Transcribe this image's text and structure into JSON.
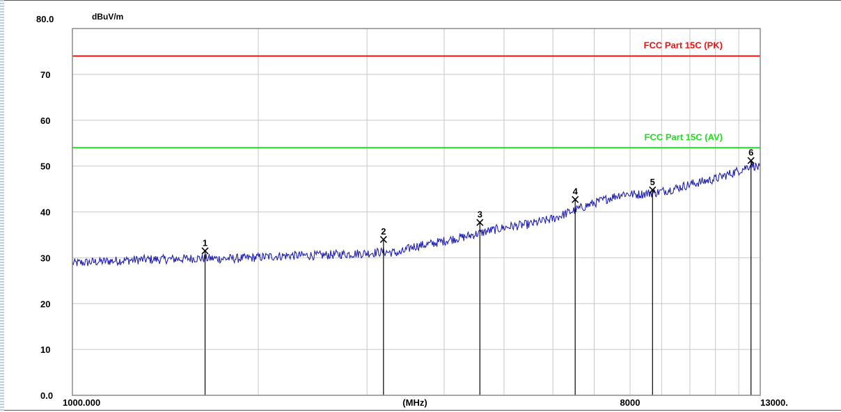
{
  "chart_data": {
    "type": "line",
    "y_unit": "dBuV/m",
    "x_unit": "(MHz)",
    "x_scale": "log",
    "xlim": [
      1000,
      13000
    ],
    "ylim": [
      0,
      80
    ],
    "grid": true,
    "y_top_tick_label": "80.0",
    "y_tick_labels": [
      {
        "value": 70,
        "label": "70"
      },
      {
        "value": 60,
        "label": "60"
      },
      {
        "value": 50,
        "label": "50"
      },
      {
        "value": 40,
        "label": "40"
      },
      {
        "value": 30,
        "label": "30"
      },
      {
        "value": 20,
        "label": "20"
      },
      {
        "value": 10,
        "label": "10"
      },
      {
        "value": 0,
        "label": "0.0"
      }
    ],
    "x_tick_labels": [
      {
        "value": 1000,
        "label": "1000.000"
      },
      {
        "value": 8000,
        "label": "8000"
      },
      {
        "value": 13000,
        "label": "13000."
      }
    ],
    "x_gridlines": [
      2000,
      3000,
      4000,
      5000,
      6000,
      7000,
      8000,
      9000,
      10000,
      11000,
      12000
    ],
    "limit_lines": [
      {
        "name": "FCC Part 15C (PK)",
        "value": 74,
        "color": "#ee1111"
      },
      {
        "name": "FCC Part 15C (AV)",
        "value": 54,
        "color": "#22dd22"
      }
    ],
    "trace": {
      "color": "#1f1fb0",
      "points": [
        [
          1000,
          28.8
        ],
        [
          1150,
          29.3
        ],
        [
          1300,
          29.6
        ],
        [
          1450,
          29.7
        ],
        [
          1600,
          29.9
        ],
        [
          1750,
          29.8
        ],
        [
          1900,
          29.9
        ],
        [
          2050,
          30.2
        ],
        [
          2250,
          30.5
        ],
        [
          2500,
          30.5
        ],
        [
          2750,
          30.8
        ],
        [
          3000,
          31.0
        ],
        [
          3200,
          31.3
        ],
        [
          3400,
          31.0
        ],
        [
          3550,
          32.4
        ],
        [
          3800,
          33.0
        ],
        [
          4100,
          34.0
        ],
        [
          4300,
          34.5
        ],
        [
          4700,
          35.8
        ],
        [
          5100,
          36.8
        ],
        [
          5500,
          37.3
        ],
        [
          6000,
          38.5
        ],
        [
          6400,
          40.0
        ],
        [
          6850,
          41.5
        ],
        [
          7400,
          43.0
        ],
        [
          7800,
          44.0
        ],
        [
          8200,
          43.8
        ],
        [
          8800,
          44.2
        ],
        [
          9400,
          45.0
        ],
        [
          10000,
          46.0
        ],
        [
          11000,
          47.2
        ],
        [
          12000,
          49.0
        ],
        [
          12600,
          50.3
        ],
        [
          13000,
          49.5
        ]
      ]
    },
    "markers": [
      {
        "label": "1",
        "x": 1640,
        "y": 31.5
      },
      {
        "label": "2",
        "x": 3190,
        "y": 34.0
      },
      {
        "label": "3",
        "x": 4570,
        "y": 37.7
      },
      {
        "label": "4",
        "x": 6520,
        "y": 42.7
      },
      {
        "label": "5",
        "x": 8700,
        "y": 44.8
      },
      {
        "label": "6",
        "x": 12560,
        "y": 51.2
      }
    ]
  }
}
